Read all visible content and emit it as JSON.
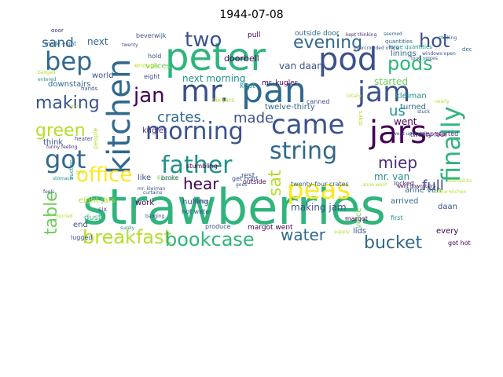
{
  "title": "1944-07-08",
  "palette": {
    "dark_purple": "#440154",
    "purple": "#472d7b",
    "indigo": "#3b528b",
    "blue": "#31688e",
    "teal": "#21918c",
    "green": "#2fb47c",
    "light_green": "#6ece58",
    "yellow_green": "#b5de2b",
    "yellow": "#fde725"
  },
  "words": [
    {
      "text": "strawberries",
      "color": "#2fb47c"
    },
    {
      "text": "peter",
      "color": "#2fb47c"
    },
    {
      "text": "mr.",
      "color": "#3b528b"
    },
    {
      "text": "pan",
      "color": "#31688e"
    },
    {
      "text": "pod",
      "color": "#3b528b"
    },
    {
      "text": "kitchen",
      "color": "#31688e"
    },
    {
      "text": "bep",
      "color": "#31688e"
    },
    {
      "text": "jam",
      "color": "#3b528b"
    },
    {
      "text": "came",
      "color": "#3b528b"
    },
    {
      "text": "jars",
      "color": "#440154"
    },
    {
      "text": "morning",
      "color": "#3b528b"
    },
    {
      "text": "finally",
      "color": "#2fb47c"
    },
    {
      "text": "got",
      "color": "#31688e"
    },
    {
      "text": "father",
      "color": "#21918c"
    },
    {
      "text": "peas",
      "color": "#fde725"
    },
    {
      "text": "string",
      "color": "#31688e"
    },
    {
      "text": "office",
      "color": "#fde725"
    },
    {
      "text": "evening",
      "color": "#31688e"
    },
    {
      "text": "two",
      "color": "#3b528b"
    },
    {
      "text": "hot",
      "color": "#3b528b"
    },
    {
      "text": "pods",
      "color": "#2fb47c"
    },
    {
      "text": "making",
      "color": "#3b528b"
    },
    {
      "text": "jan",
      "color": "#440154"
    },
    {
      "text": "crates.",
      "color": "#31688e"
    },
    {
      "text": "made",
      "color": "#3b528b"
    },
    {
      "text": "green",
      "color": "#b5de2b"
    },
    {
      "text": "us",
      "color": "#21918c"
    },
    {
      "text": "hear",
      "color": "#440154"
    },
    {
      "text": "sat",
      "color": "#b5de2b"
    },
    {
      "text": "miep",
      "color": "#472d7b"
    },
    {
      "text": "full",
      "color": "#3b528b"
    },
    {
      "text": "table",
      "color": "#6ece58"
    },
    {
      "text": "breakfast",
      "color": "#b5de2b"
    },
    {
      "text": "bookcase",
      "color": "#2fb47c"
    },
    {
      "text": "water",
      "color": "#31688e"
    },
    {
      "text": "bucket",
      "color": "#31688e"
    },
    {
      "text": "sand",
      "color": "#31688e"
    },
    {
      "text": "van daan",
      "color": "#3b528b"
    },
    {
      "text": "mr. van",
      "color": "#21918c"
    },
    {
      "text": "kugler",
      "color": "#472d7b"
    },
    {
      "text": "kleiman",
      "color": "#21918c"
    },
    {
      "text": "started",
      "color": "#6ece58"
    },
    {
      "text": "went",
      "color": "#440154"
    },
    {
      "text": "next morning",
      "color": "#21918c"
    },
    {
      "text": "mr. kugler",
      "color": "#440154"
    },
    {
      "text": "twelve-thirty",
      "color": "#31688e"
    },
    {
      "text": "making jam",
      "color": "#3b528b"
    },
    {
      "text": "turned",
      "color": "#31688e"
    },
    {
      "text": "doorbell",
      "color": "#440154"
    },
    {
      "text": "outside door",
      "color": "#31688e"
    },
    {
      "text": "linings",
      "color": "#31688e"
    },
    {
      "text": "voices",
      "color": "#6ece58"
    },
    {
      "text": "enough",
      "color": "#b5de2b"
    },
    {
      "text": "next",
      "color": "#31688e"
    },
    {
      "text": "hulling",
      "color": "#3b528b"
    },
    {
      "text": "work",
      "color": "#440154"
    },
    {
      "text": "hot water",
      "color": "#3b528b"
    },
    {
      "text": "rest",
      "color": "#3b528b"
    },
    {
      "text": "downstairs",
      "color": "#31688e"
    },
    {
      "text": "beverwijk",
      "color": "#3b528b"
    },
    {
      "text": "pull",
      "color": "#440154"
    },
    {
      "text": "world",
      "color": "#3b528b"
    },
    {
      "text": "eight jars",
      "color": "#b5de2b"
    },
    {
      "text": "think",
      "color": "#3b528b"
    },
    {
      "text": "auction",
      "color": "#21918c"
    },
    {
      "text": "twenty-four crates",
      "color": "#31688e"
    },
    {
      "text": "arrived",
      "color": "#31688e"
    },
    {
      "text": "anne van",
      "color": "#31688e"
    },
    {
      "text": "every",
      "color": "#440154"
    },
    {
      "text": "lids",
      "color": "#3b528b"
    },
    {
      "text": "voice",
      "color": "#6ece58"
    },
    {
      "text": "stumbling",
      "color": "#440154"
    },
    {
      "text": "end",
      "color": "#3b528b"
    },
    {
      "text": "like",
      "color": "#3b528b"
    },
    {
      "text": "broke",
      "color": "#3b528b"
    },
    {
      "text": "people",
      "color": "#b5de2b"
    },
    {
      "text": "dusty",
      "color": "#2fb47c"
    },
    {
      "text": "lugged",
      "color": "#3b528b"
    },
    {
      "text": "kept",
      "color": "#21918c"
    },
    {
      "text": "first",
      "color": "#21918c"
    },
    {
      "text": "canned",
      "color": "#3b528b"
    },
    {
      "text": "large quantities",
      "color": "#21918c"
    },
    {
      "text": "quantities",
      "color": "#31688e"
    },
    {
      "text": "deck",
      "color": "#31688e"
    },
    {
      "text": "daan",
      "color": "#3b528b"
    },
    {
      "text": "locked",
      "color": "#472d7b"
    },
    {
      "text": "got hot",
      "color": "#440154"
    },
    {
      "text": "margot went",
      "color": "#440154"
    },
    {
      "text": "produce",
      "color": "#3b528b"
    },
    {
      "text": "eight",
      "color": "#3b528b"
    },
    {
      "text": "hold",
      "color": "#3b528b"
    },
    {
      "text": "six",
      "color": "#3b528b"
    },
    {
      "text": "made eight",
      "color": "#31688e"
    },
    {
      "text": "get hold",
      "color": "#3b528b"
    },
    {
      "text": "margot",
      "color": "#440154"
    },
    {
      "text": "outside",
      "color": "#440154"
    },
    {
      "text": "twenty-four",
      "color": "#440154"
    },
    {
      "text": "stairs",
      "color": "#b5de2b"
    },
    {
      "text": "miep started",
      "color": "#472d7b"
    },
    {
      "text": "door",
      "color": "#472d7b"
    },
    {
      "text": "one",
      "color": "#b5de2b"
    },
    {
      "text": "hands",
      "color": "#3b528b"
    },
    {
      "text": "heater",
      "color": "#3b528b"
    },
    {
      "text": "funny feeling",
      "color": "#472d7b"
    },
    {
      "text": "six jars",
      "color": "#b5de2b"
    },
    {
      "text": "first six",
      "color": "#6ece58"
    },
    {
      "text": "mr. kleiman",
      "color": "#3b528b"
    },
    {
      "text": "twenty",
      "color": "#3b528b"
    },
    {
      "text": "supply",
      "color": "#b5de2b"
    },
    {
      "text": "stomach",
      "color": "#21918c"
    },
    {
      "text": "feeling",
      "color": "#3b528b"
    },
    {
      "text": "hurried",
      "color": "#b5de2b"
    },
    {
      "text": "went upstairs",
      "color": "#3b528b"
    },
    {
      "text": "totally",
      "color": "#b5de2b"
    },
    {
      "text": "nearly",
      "color": "#b5de2b"
    },
    {
      "text": "stuck",
      "color": "#3b528b"
    },
    {
      "text": "entered",
      "color": "#21918c"
    },
    {
      "text": "banged",
      "color": "#b5de2b"
    },
    {
      "text": "loud voices",
      "color": "#3b528b"
    },
    {
      "text": "shelling",
      "color": "#31688e"
    },
    {
      "text": "windows open",
      "color": "#3b528b"
    },
    {
      "text": "kept thinking",
      "color": "#472d7b"
    },
    {
      "text": "overcrowded office",
      "color": "#3b528b"
    },
    {
      "text": "started baking",
      "color": "#b5de2b"
    },
    {
      "text": "office kitchen",
      "color": "#b5de2b"
    },
    {
      "text": "went downstairs",
      "color": "#440154"
    },
    {
      "text": "seemed",
      "color": "#31688e"
    },
    {
      "text": "fire",
      "color": "#b5de2b"
    },
    {
      "text": "feels",
      "color": "#3b528b"
    },
    {
      "text": "curtains",
      "color": "#3b528b"
    },
    {
      "text": "banging",
      "color": "#3b528b"
    },
    {
      "text": "anne went",
      "color": "#b5de2b"
    },
    {
      "text": "surely",
      "color": "#21918c"
    },
    {
      "text": "goes",
      "color": "#3b528b"
    }
  ]
}
